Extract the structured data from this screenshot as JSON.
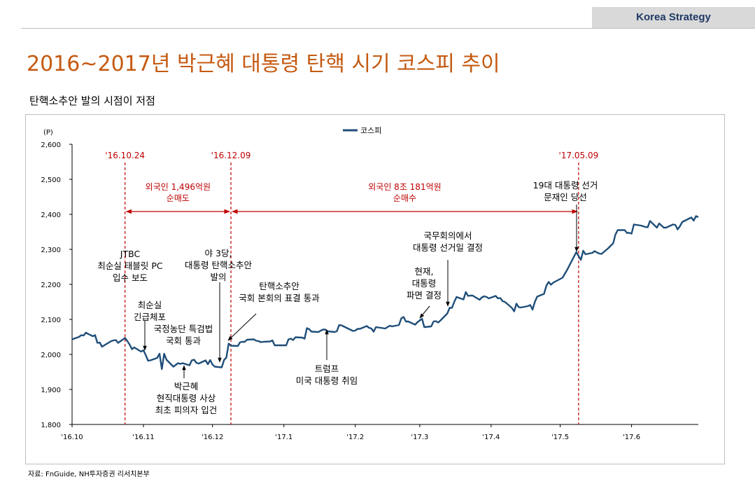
{
  "header": {
    "tag": "Korea Strategy",
    "title": "2016~2017년 박근혜 대통령 탄핵 시기 코스피 추이",
    "subtitle": "탄핵소추안 발의 시점이 저점"
  },
  "source": "자료: FnGuide, NH투자증권 리서치본부",
  "colors": {
    "line": "#1f4e79",
    "event": "#c00000",
    "annotation": "#000000",
    "title": "#c55a11"
  },
  "chart_data": {
    "type": "line",
    "title": "",
    "ylabel": "(P)",
    "xlabel": "",
    "ylim": [
      1800,
      2600
    ],
    "yticks": [
      1800,
      1900,
      2000,
      2100,
      2200,
      2300,
      2400,
      2500,
      2600
    ],
    "ytick_labels": [
      "1,800",
      "1,900",
      "2,000",
      "2,100",
      "2,200",
      "2,300",
      "2,400",
      "2,500",
      "2,600"
    ],
    "xlim": [
      "2016-10-01",
      "2017-06-30"
    ],
    "xticks": [
      {
        "date": "2016-10-01",
        "label": "'16.10"
      },
      {
        "date": "2016-11-01",
        "label": "'16.11"
      },
      {
        "date": "2016-12-01",
        "label": "'16.12"
      },
      {
        "date": "2017-01-01",
        "label": "'17.1"
      },
      {
        "date": "2017-02-01",
        "label": "'17.2"
      },
      {
        "date": "2017-03-01",
        "label": "'17.3"
      },
      {
        "date": "2017-04-01",
        "label": "'17.4"
      },
      {
        "date": "2017-05-01",
        "label": "'17.5"
      },
      {
        "date": "2017-06-01",
        "label": "'17.6"
      }
    ],
    "legend": {
      "position": "top-center",
      "entries": [
        "코스피"
      ]
    },
    "grid": false,
    "series": [
      {
        "name": "코스피",
        "points": [
          [
            "2016-10-01",
            2043
          ],
          [
            "2016-10-04",
            2050
          ],
          [
            "2016-10-05",
            2055
          ],
          [
            "2016-10-06",
            2054
          ],
          [
            "2016-10-07",
            2062
          ],
          [
            "2016-10-10",
            2052
          ],
          [
            "2016-10-11",
            2055
          ],
          [
            "2016-10-12",
            2033
          ],
          [
            "2016-10-13",
            2034
          ],
          [
            "2016-10-14",
            2022
          ],
          [
            "2016-10-17",
            2034
          ],
          [
            "2016-10-18",
            2038
          ],
          [
            "2016-10-19",
            2040
          ],
          [
            "2016-10-20",
            2041
          ],
          [
            "2016-10-21",
            2033
          ],
          [
            "2016-10-24",
            2047
          ],
          [
            "2016-10-25",
            2038
          ],
          [
            "2016-10-26",
            2028
          ],
          [
            "2016-10-27",
            2015
          ],
          [
            "2016-10-28",
            2020
          ],
          [
            "2016-10-31",
            2008
          ],
          [
            "2016-11-01",
            2012
          ],
          [
            "2016-11-02",
            1998
          ],
          [
            "2016-11-03",
            1982
          ],
          [
            "2016-11-04",
            1983
          ],
          [
            "2016-11-07",
            1990
          ],
          [
            "2016-11-08",
            2002
          ],
          [
            "2016-11-09",
            1958
          ],
          [
            "2016-11-10",
            2002
          ],
          [
            "2016-11-11",
            1985
          ],
          [
            "2016-11-14",
            1965
          ],
          [
            "2016-11-15",
            1970
          ],
          [
            "2016-11-16",
            1975
          ],
          [
            "2016-11-17",
            1973
          ],
          [
            "2016-11-18",
            1975
          ],
          [
            "2016-11-21",
            1969
          ],
          [
            "2016-11-22",
            1983
          ],
          [
            "2016-11-23",
            1985
          ],
          [
            "2016-11-24",
            1976
          ],
          [
            "2016-11-25",
            1974
          ],
          [
            "2016-11-28",
            1983
          ],
          [
            "2016-11-29",
            1972
          ],
          [
            "2016-11-30",
            1984
          ],
          [
            "2016-12-01",
            1971
          ],
          [
            "2016-12-02",
            1965
          ],
          [
            "2016-12-05",
            1963
          ],
          [
            "2016-12-06",
            1984
          ],
          [
            "2016-12-07",
            1991
          ],
          [
            "2016-12-08",
            2031
          ],
          [
            "2016-12-09",
            2025
          ],
          [
            "2016-12-12",
            2024
          ],
          [
            "2016-12-13",
            2035
          ],
          [
            "2016-12-14",
            2036
          ],
          [
            "2016-12-15",
            2036
          ],
          [
            "2016-12-16",
            2042
          ],
          [
            "2016-12-19",
            2043
          ],
          [
            "2016-12-20",
            2039
          ],
          [
            "2016-12-21",
            2038
          ],
          [
            "2016-12-22",
            2035
          ],
          [
            "2016-12-23",
            2036
          ],
          [
            "2016-12-26",
            2037
          ],
          [
            "2016-12-27",
            2040
          ],
          [
            "2016-12-28",
            2026
          ],
          [
            "2016-12-29",
            2026
          ],
          [
            "2017-01-02",
            2026
          ],
          [
            "2017-01-03",
            2043
          ],
          [
            "2017-01-04",
            2045
          ],
          [
            "2017-01-05",
            2041
          ],
          [
            "2017-01-06",
            2049
          ],
          [
            "2017-01-09",
            2048
          ],
          [
            "2017-01-10",
            2045
          ],
          [
            "2017-01-11",
            2075
          ],
          [
            "2017-01-12",
            2072
          ],
          [
            "2017-01-13",
            2065
          ],
          [
            "2017-01-16",
            2064
          ],
          [
            "2017-01-17",
            2068
          ],
          [
            "2017-01-18",
            2071
          ],
          [
            "2017-01-19",
            2071
          ],
          [
            "2017-01-20",
            2066
          ],
          [
            "2017-01-23",
            2064
          ],
          [
            "2017-01-24",
            2066
          ],
          [
            "2017-01-25",
            2084
          ],
          [
            "2017-01-26",
            2083
          ],
          [
            "2017-01-31",
            2067
          ],
          [
            "2017-02-01",
            2068
          ],
          [
            "2017-02-02",
            2073
          ],
          [
            "2017-02-03",
            2073
          ],
          [
            "2017-02-06",
            2081
          ],
          [
            "2017-02-07",
            2076
          ],
          [
            "2017-02-08",
            2074
          ],
          [
            "2017-02-09",
            2065
          ],
          [
            "2017-02-10",
            2078
          ],
          [
            "2017-02-13",
            2075
          ],
          [
            "2017-02-14",
            2074
          ],
          [
            "2017-02-15",
            2078
          ],
          [
            "2017-02-16",
            2082
          ],
          [
            "2017-02-17",
            2080
          ],
          [
            "2017-02-20",
            2084
          ],
          [
            "2017-02-21",
            2103
          ],
          [
            "2017-02-22",
            2107
          ],
          [
            "2017-02-23",
            2094
          ],
          [
            "2017-02-24",
            2094
          ],
          [
            "2017-02-27",
            2085
          ],
          [
            "2017-02-28",
            2092
          ],
          [
            "2017-03-02",
            2102
          ],
          [
            "2017-03-03",
            2078
          ],
          [
            "2017-03-06",
            2080
          ],
          [
            "2017-03-07",
            2094
          ],
          [
            "2017-03-08",
            2095
          ],
          [
            "2017-03-09",
            2091
          ],
          [
            "2017-03-10",
            2097
          ],
          [
            "2017-03-13",
            2117
          ],
          [
            "2017-03-14",
            2133
          ],
          [
            "2017-03-15",
            2133
          ],
          [
            "2017-03-16",
            2150
          ],
          [
            "2017-03-17",
            2164
          ],
          [
            "2017-03-20",
            2157
          ],
          [
            "2017-03-21",
            2178
          ],
          [
            "2017-03-22",
            2167
          ],
          [
            "2017-03-23",
            2168
          ],
          [
            "2017-03-24",
            2168
          ],
          [
            "2017-03-27",
            2156
          ],
          [
            "2017-03-28",
            2163
          ],
          [
            "2017-03-29",
            2166
          ],
          [
            "2017-03-30",
            2164
          ],
          [
            "2017-03-31",
            2160
          ],
          [
            "2017-04-03",
            2167
          ],
          [
            "2017-04-04",
            2160
          ],
          [
            "2017-04-05",
            2161
          ],
          [
            "2017-04-06",
            2152
          ],
          [
            "2017-04-07",
            2150
          ],
          [
            "2017-04-10",
            2133
          ],
          [
            "2017-04-11",
            2123
          ],
          [
            "2017-04-12",
            2145
          ],
          [
            "2017-04-13",
            2135
          ],
          [
            "2017-04-14",
            2134
          ],
          [
            "2017-04-17",
            2138
          ],
          [
            "2017-04-18",
            2141
          ],
          [
            "2017-04-19",
            2128
          ],
          [
            "2017-04-20",
            2150
          ],
          [
            "2017-04-21",
            2165
          ],
          [
            "2017-04-24",
            2173
          ],
          [
            "2017-04-25",
            2196
          ],
          [
            "2017-04-26",
            2207
          ],
          [
            "2017-04-27",
            2199
          ],
          [
            "2017-04-28",
            2205
          ],
          [
            "2017-05-02",
            2219
          ],
          [
            "2017-05-04",
            2241
          ],
          [
            "2017-05-08",
            2292
          ],
          [
            "2017-05-10",
            2270
          ],
          [
            "2017-05-11",
            2296
          ],
          [
            "2017-05-12",
            2286
          ],
          [
            "2017-05-15",
            2290
          ],
          [
            "2017-05-16",
            2295
          ],
          [
            "2017-05-17",
            2291
          ],
          [
            "2017-05-18",
            2288
          ],
          [
            "2017-05-19",
            2287
          ],
          [
            "2017-05-22",
            2304
          ],
          [
            "2017-05-23",
            2311
          ],
          [
            "2017-05-24",
            2317
          ],
          [
            "2017-05-25",
            2342
          ],
          [
            "2017-05-26",
            2355
          ],
          [
            "2017-05-29",
            2355
          ],
          [
            "2017-05-30",
            2347
          ],
          [
            "2017-05-31",
            2347
          ],
          [
            "2017-06-01",
            2345
          ],
          [
            "2017-06-02",
            2371
          ],
          [
            "2017-06-05",
            2368
          ],
          [
            "2017-06-07",
            2364
          ],
          [
            "2017-06-08",
            2363
          ],
          [
            "2017-06-09",
            2381
          ],
          [
            "2017-06-12",
            2362
          ],
          [
            "2017-06-13",
            2374
          ],
          [
            "2017-06-14",
            2368
          ],
          [
            "2017-06-15",
            2362
          ],
          [
            "2017-06-16",
            2362
          ],
          [
            "2017-06-19",
            2371
          ],
          [
            "2017-06-20",
            2370
          ],
          [
            "2017-06-21",
            2357
          ],
          [
            "2017-06-22",
            2366
          ],
          [
            "2017-06-23",
            2378
          ],
          [
            "2017-06-26",
            2388
          ],
          [
            "2017-06-27",
            2391
          ],
          [
            "2017-06-28",
            2382
          ],
          [
            "2017-06-29",
            2395
          ],
          [
            "2017-06-30",
            2392
          ]
        ]
      }
    ],
    "events": [
      {
        "date": "2016-10-24",
        "label": "'16.10.24"
      },
      {
        "date": "2016-12-09",
        "label": "'16.12.09"
      },
      {
        "date": "2017-05-09",
        "label": "'17.05.09"
      }
    ],
    "ranges": [
      {
        "from": "2016-10-24",
        "to": "2016-12-09",
        "lines": [
          "외국인 1,496억원",
          "순매도"
        ]
      },
      {
        "from": "2016-12-09",
        "to": "2017-05-09",
        "lines": [
          "외국인 8조 181억원",
          "순매수"
        ]
      }
    ],
    "annotations": [
      {
        "lines": [
          "JTBC",
          "최순실 태블릿 PC",
          "입수 보도"
        ]
      },
      {
        "lines": [
          "최순실",
          "긴급체포"
        ],
        "target": [
          "2016-10-31",
          2008
        ]
      },
      {
        "lines": [
          "국정농단 특검법",
          "국회 통과"
        ]
      },
      {
        "lines": [
          "야 3당,",
          "대통령 탄핵소추안",
          "발의"
        ],
        "target": [
          "2016-12-05",
          1963
        ]
      },
      {
        "lines": [
          "탄핵소추안",
          "국회 본회의 표결 통과"
        ],
        "target": [
          "2016-12-09",
          2025
        ]
      },
      {
        "lines": [
          "박근혜",
          "현직대통령 사상",
          "최초 피의자 입건"
        ],
        "target": [
          "2016-11-21",
          1969
        ]
      },
      {
        "lines": [
          "트럼프",
          "미국 대통령 취임"
        ],
        "target": [
          "2017-01-20",
          2066
        ]
      },
      {
        "lines": [
          "현재,",
          "대통령",
          "파면 결정"
        ],
        "target": [
          "2017-03-10",
          2097
        ]
      },
      {
        "lines": [
          "국무회의에서",
          "대통령 선거일 결정"
        ],
        "target": [
          "2017-03-14",
          2133
        ]
      },
      {
        "lines": [
          "19대 대통령 선거",
          "문재인 당선"
        ],
        "target": [
          "2017-05-09",
          2290
        ]
      }
    ]
  }
}
